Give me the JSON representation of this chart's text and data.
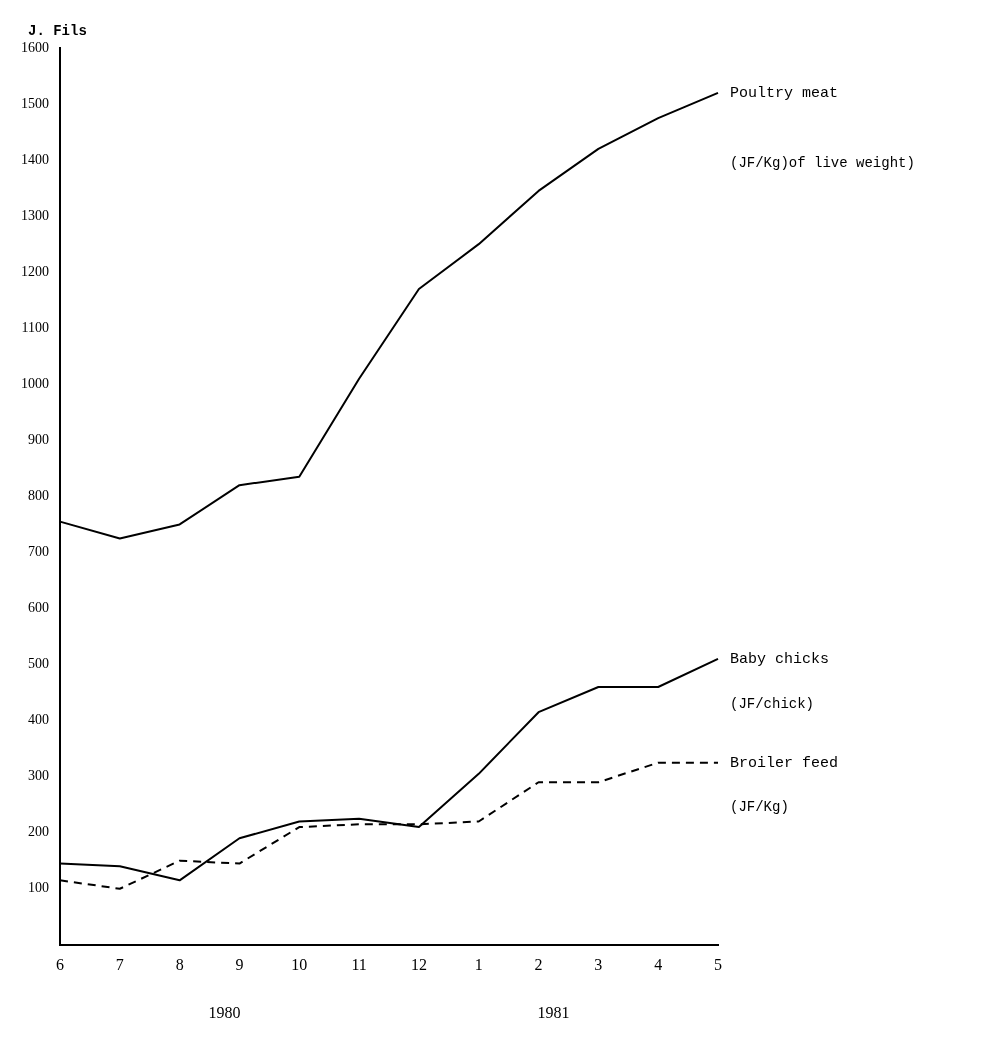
{
  "chart_data": {
    "type": "line",
    "ylabel": "J. Fils",
    "categories": [
      "6",
      "7",
      "8",
      "9",
      "10",
      "11",
      "12",
      "1",
      "2",
      "3",
      "4",
      "5"
    ],
    "series": [
      {
        "name": "Poultry meat",
        "color": "#000000",
        "line_style": "solid",
        "values": [
          755,
          725,
          750,
          820,
          835,
          1010,
          1170,
          1250,
          1345,
          1420,
          1475,
          1520
        ]
      },
      {
        "name": "Baby chicks",
        "color": "#000000",
        "line_style": "solid",
        "values": [
          145,
          140,
          115,
          190,
          220,
          225,
          210,
          305,
          415,
          460,
          460,
          510
        ]
      },
      {
        "name": "Broiler feed",
        "color": "#000000",
        "line_style": "dashed",
        "values": [
          115,
          100,
          150,
          145,
          210,
          215,
          215,
          220,
          290,
          290,
          325,
          325
        ]
      }
    ],
    "annotations": [
      "(JF/Kg)of live weight)",
      "(JF/chick)",
      "(JF/Kg)",
      "1980",
      "1981"
    ],
    "ylim": [
      0,
      1600
    ],
    "yticks": [
      100,
      200,
      300,
      400,
      500,
      600,
      700,
      800,
      900,
      1000,
      1100,
      1200,
      1300,
      1400,
      1500,
      1600
    ],
    "grid": false,
    "legend": false,
    "marker": "none"
  }
}
